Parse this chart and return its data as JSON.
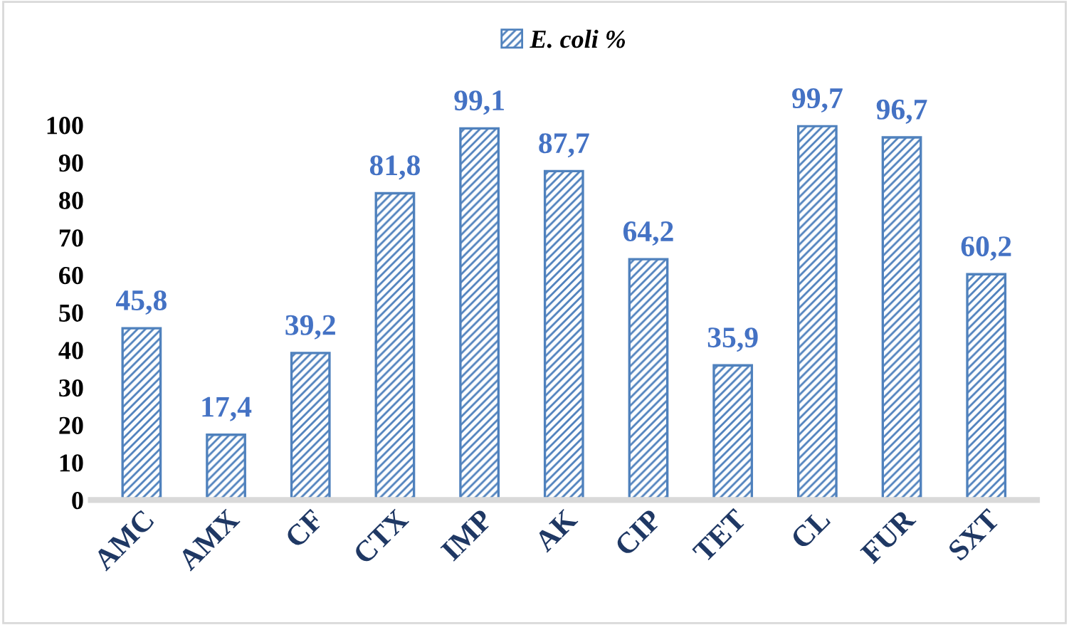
{
  "chart_data": {
    "type": "bar",
    "categories": [
      "AMC",
      "AMX",
      "CF",
      "CTX",
      "IMP",
      "AK",
      "CIP",
      "TET",
      "CL",
      "FUR",
      "SXT"
    ],
    "series": [
      {
        "name": "E. coli %",
        "color": "#4f81bd",
        "values": [
          45.8,
          17.4,
          39.2,
          81.8,
          99.1,
          87.7,
          64.2,
          35.9,
          99.7,
          96.7,
          60.2
        ],
        "value_labels": [
          "45,8",
          "17,4",
          "39,2",
          "81,8",
          "99,1",
          "87,7",
          "64,2",
          "35,9",
          "99,7",
          "96,7",
          "60,2"
        ]
      }
    ],
    "ylim": [
      0,
      100
    ],
    "yticks": [
      0,
      10,
      20,
      30,
      40,
      50,
      60,
      70,
      80,
      90,
      100
    ],
    "grid": false,
    "legend": "top"
  }
}
